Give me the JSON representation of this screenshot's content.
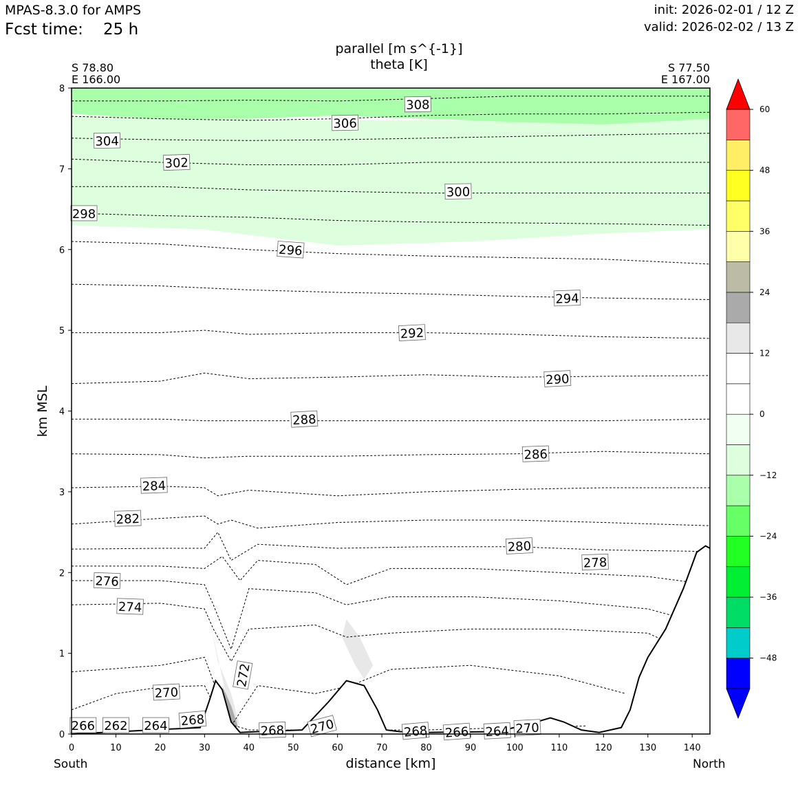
{
  "header": {
    "model": "MPAS-8.3.0 for AMPS",
    "fcst_label": "Fcst time:",
    "fcst_value": "25 h",
    "init": "init: 2026-02-01 / 12 Z",
    "valid": "valid: 2026-02-02 / 13 Z"
  },
  "endpoints": {
    "left_lat": "S 78.80",
    "left_lon": "E 166.00",
    "right_lat": "S 77.50",
    "right_lon": "E 167.00",
    "left_dir": "South",
    "right_dir": "North"
  },
  "chart_data": {
    "type": "cross-section",
    "title": "parallel [m s^{-1}]",
    "subtitle": "theta [K]",
    "xlabel": "distance [km]",
    "ylabel": "km MSL",
    "xlim": [
      0,
      144
    ],
    "ylim": [
      0,
      8
    ],
    "x_ticks": [
      0,
      10,
      20,
      30,
      40,
      50,
      60,
      70,
      80,
      90,
      100,
      110,
      120,
      130,
      140
    ],
    "y_ticks": [
      0,
      1,
      2,
      3,
      4,
      5,
      6,
      7,
      8
    ],
    "theta_contours": [
      {
        "level": 308,
        "x": [
          0,
          20,
          40,
          60,
          80,
          100,
          120,
          144
        ],
        "z": [
          7.84,
          7.84,
          7.85,
          7.84,
          7.87,
          7.9,
          7.9,
          7.9
        ]
      },
      {
        "level": 306,
        "x": [
          0,
          20,
          40,
          60,
          80,
          100,
          120,
          144
        ],
        "z": [
          7.65,
          7.62,
          7.6,
          7.62,
          7.66,
          7.68,
          7.68,
          7.7
        ]
      },
      {
        "level": 304,
        "x": [
          0,
          20,
          40,
          60,
          80,
          100,
          120,
          144
        ],
        "z": [
          7.38,
          7.36,
          7.35,
          7.36,
          7.38,
          7.4,
          7.42,
          7.44
        ]
      },
      {
        "level": 302,
        "x": [
          0,
          20,
          40,
          60,
          80,
          100,
          120,
          144
        ],
        "z": [
          7.12,
          7.08,
          7.05,
          7.05,
          7.08,
          7.08,
          7.08,
          7.08
        ]
      },
      {
        "level": 300,
        "x": [
          0,
          20,
          40,
          60,
          80,
          100,
          120,
          144
        ],
        "z": [
          6.78,
          6.78,
          6.74,
          6.72,
          6.7,
          6.7,
          6.7,
          6.7
        ]
      },
      {
        "level": 298,
        "x": [
          0,
          20,
          40,
          60,
          80,
          100,
          120,
          144
        ],
        "z": [
          6.45,
          6.42,
          6.4,
          6.36,
          6.34,
          6.33,
          6.32,
          6.3
        ]
      },
      {
        "level": 296,
        "x": [
          0,
          20,
          40,
          60,
          80,
          100,
          120,
          144
        ],
        "z": [
          6.1,
          6.07,
          6.0,
          5.95,
          5.92,
          5.9,
          5.88,
          5.82
        ]
      },
      {
        "level": 294,
        "x": [
          0,
          20,
          40,
          60,
          80,
          100,
          120,
          144
        ],
        "z": [
          5.57,
          5.55,
          5.5,
          5.47,
          5.45,
          5.42,
          5.4,
          5.38
        ]
      },
      {
        "level": 292,
        "x": [
          0,
          20,
          30,
          40,
          60,
          80,
          100,
          120,
          144
        ],
        "z": [
          4.97,
          4.97,
          5.0,
          4.95,
          4.97,
          4.97,
          4.95,
          4.92,
          4.9
        ]
      },
      {
        "level": 290,
        "x": [
          0,
          20,
          30,
          40,
          60,
          80,
          100,
          120,
          144
        ],
        "z": [
          4.34,
          4.37,
          4.47,
          4.4,
          4.42,
          4.45,
          4.42,
          4.43,
          4.44
        ]
      },
      {
        "level": 288,
        "x": [
          0,
          20,
          30,
          40,
          60,
          80,
          100,
          120,
          144
        ],
        "z": [
          3.9,
          3.9,
          3.88,
          3.88,
          3.88,
          3.88,
          3.88,
          3.88,
          3.9
        ]
      },
      {
        "level": 286,
        "x": [
          0,
          20,
          30,
          40,
          60,
          80,
          100,
          120,
          144
        ],
        "z": [
          3.47,
          3.46,
          3.42,
          3.44,
          3.44,
          3.46,
          3.47,
          3.5,
          3.47
        ]
      },
      {
        "level": 284,
        "x": [
          0,
          20,
          30,
          33,
          40,
          60,
          80,
          100,
          120,
          144
        ],
        "z": [
          3.05,
          3.07,
          3.05,
          2.95,
          3.02,
          2.95,
          3.0,
          3.03,
          3.05,
          3.05
        ]
      },
      {
        "level": 282,
        "x": [
          0,
          20,
          30,
          33,
          36,
          42,
          60,
          80,
          100,
          120,
          144
        ],
        "z": [
          2.6,
          2.67,
          2.7,
          2.6,
          2.65,
          2.55,
          2.62,
          2.65,
          2.65,
          2.62,
          2.58
        ]
      },
      {
        "level": 280,
        "x": [
          0,
          20,
          30,
          33,
          36,
          42,
          60,
          80,
          100,
          120,
          144
        ],
        "z": [
          2.29,
          2.3,
          2.3,
          2.5,
          2.15,
          2.35,
          2.3,
          2.32,
          2.32,
          2.28,
          2.26
        ]
      },
      {
        "level": 278,
        "x": [
          0,
          20,
          30,
          34,
          38,
          42,
          55,
          62,
          72,
          90,
          110,
          130,
          144
        ],
        "z": [
          2.08,
          2.08,
          2.05,
          2.2,
          1.9,
          2.15,
          2.1,
          1.85,
          2.05,
          2.05,
          2.0,
          1.95,
          1.85
        ]
      },
      {
        "level": 276,
        "x": [
          0,
          20,
          30,
          32,
          36,
          40,
          55,
          62,
          72,
          90,
          110,
          130,
          140
        ],
        "z": [
          1.9,
          1.9,
          1.85,
          1.6,
          1.05,
          1.8,
          1.75,
          1.6,
          1.7,
          1.7,
          1.65,
          1.55,
          1.4
        ]
      },
      {
        "level": 274,
        "x": [
          0,
          20,
          30,
          32,
          36,
          40,
          55,
          62,
          72,
          90,
          110,
          130,
          138
        ],
        "z": [
          1.6,
          1.62,
          1.55,
          1.3,
          0.9,
          1.3,
          1.35,
          1.2,
          1.25,
          1.3,
          1.3,
          1.25,
          1.05
        ]
      },
      {
        "level": 272,
        "x": [
          0,
          20,
          30,
          33,
          36,
          42,
          55,
          63,
          72,
          90,
          110,
          125
        ],
        "z": [
          0.77,
          0.85,
          0.95,
          0.5,
          0.1,
          0.6,
          0.5,
          0.6,
          0.8,
          0.85,
          0.72,
          0.5
        ]
      },
      {
        "level": 270,
        "x": [
          0,
          10,
          20,
          30,
          34,
          40,
          55,
          62,
          70,
          80,
          100,
          116
        ],
        "z": [
          0.3,
          0.5,
          0.58,
          0.6,
          0.15,
          0.05,
          0.05,
          0.15,
          0.05,
          0.05,
          0.08,
          0.1
        ]
      }
    ],
    "terrain": {
      "x": [
        0,
        29,
        31,
        32.5,
        34,
        36,
        38,
        42,
        52,
        58,
        62,
        66,
        69,
        71,
        74,
        80,
        96,
        103,
        108,
        111,
        115,
        119,
        124,
        126,
        128,
        130,
        134,
        138,
        141,
        143,
        144
      ],
      "z": [
        0,
        0.08,
        0.4,
        0.66,
        0.55,
        0.15,
        0.02,
        0.03,
        0.05,
        0.4,
        0.66,
        0.6,
        0.3,
        0.05,
        0.03,
        0.02,
        0.03,
        0.12,
        0.2,
        0.15,
        0.05,
        0.02,
        0.08,
        0.3,
        0.7,
        0.95,
        1.3,
        1.8,
        2.25,
        2.33,
        2.3
      ]
    },
    "wind_shading": [
      {
        "level_min": -12,
        "level_max": -6,
        "x": [
          0,
          30,
          60,
          90,
          120,
          144,
          144,
          120,
          90,
          60,
          30,
          0
        ],
        "z": [
          6.3,
          6.25,
          6.05,
          6.1,
          6.2,
          6.25,
          7.9,
          7.8,
          7.6,
          7.6,
          7.62,
          7.65
        ]
      },
      {
        "level_min": -18,
        "level_max": -12,
        "x": [
          0,
          20,
          40,
          60,
          80,
          100,
          120,
          144,
          144,
          0
        ],
        "z": [
          7.68,
          7.62,
          7.62,
          7.66,
          7.62,
          7.58,
          7.55,
          7.62,
          8.0,
          8.0
        ]
      },
      {
        "level_min": 6,
        "level_max": 12,
        "x": [
          0,
          30,
          34,
          36,
          38,
          40,
          46,
          58,
          62,
          67,
          72,
          80,
          110,
          122,
          120,
          108,
          100,
          80,
          72,
          66,
          60,
          44,
          38,
          34,
          20,
          0
        ],
        "z": [
          2.12,
          2.07,
          1.3,
          1.55,
          1.7,
          1.95,
          2.03,
          2.0,
          1.7,
          1.6,
          1.95,
          1.65,
          1.55,
          1.35,
          1.0,
          0.75,
          0.6,
          0.5,
          0.55,
          0.6,
          0.6,
          0.45,
          0.4,
          0.6,
          0.55,
          0.28
        ]
      },
      {
        "level_min": 12,
        "level_max": 18,
        "x": [
          31,
          34,
          36,
          38,
          36,
          33
        ],
        "z": [
          1.45,
          0.7,
          0.2,
          0.1,
          0.5,
          0.9
        ]
      },
      {
        "level_min": 12,
        "level_max": 18,
        "x": [
          62,
          65,
          68,
          66,
          64,
          61
        ],
        "z": [
          1.42,
          1.2,
          0.85,
          0.68,
          0.85,
          1.2
        ]
      },
      {
        "level_min": 18,
        "level_max": 24,
        "x": [
          34,
          36,
          37.5,
          36.5
        ],
        "z": [
          0.6,
          0.35,
          0.1,
          0.05
        ]
      }
    ],
    "contour_labels": [
      "308",
      "306",
      "304",
      "302",
      "300",
      "298",
      "296",
      "294",
      "292",
      "290",
      "288",
      "286",
      "284",
      "282",
      "280",
      "278",
      "276",
      "274",
      "272",
      "270",
      "270",
      "270",
      "268",
      "268",
      "268",
      "266",
      "266",
      "264",
      "264",
      "262"
    ],
    "colorbar": {
      "levels": [
        -54,
        -48,
        -42,
        -36,
        -30,
        -24,
        -18,
        -12,
        -6,
        0,
        6,
        12,
        18,
        24,
        30,
        36,
        42,
        48,
        54,
        60
      ],
      "colors": [
        "#0000ff",
        "#00cccc",
        "#00dd66",
        "#00ee33",
        "#22ff22",
        "#66ff66",
        "#aaffaa",
        "#ddffdd",
        "#f0fff0",
        "#ffffff",
        "#ffffff",
        "#e8e8e8",
        "#aaaaaa",
        "#bcbca6",
        "#ffffaa",
        "#ffff66",
        "#ffff22",
        "#ffee66",
        "#ff6666",
        "#ff0000"
      ],
      "tick_labels": [
        "60",
        "48",
        "36",
        "24",
        "12",
        "0",
        "−12",
        "−24",
        "−36",
        "−48"
      ],
      "under_color": "#0000ff",
      "over_color": "#ff0000"
    }
  }
}
